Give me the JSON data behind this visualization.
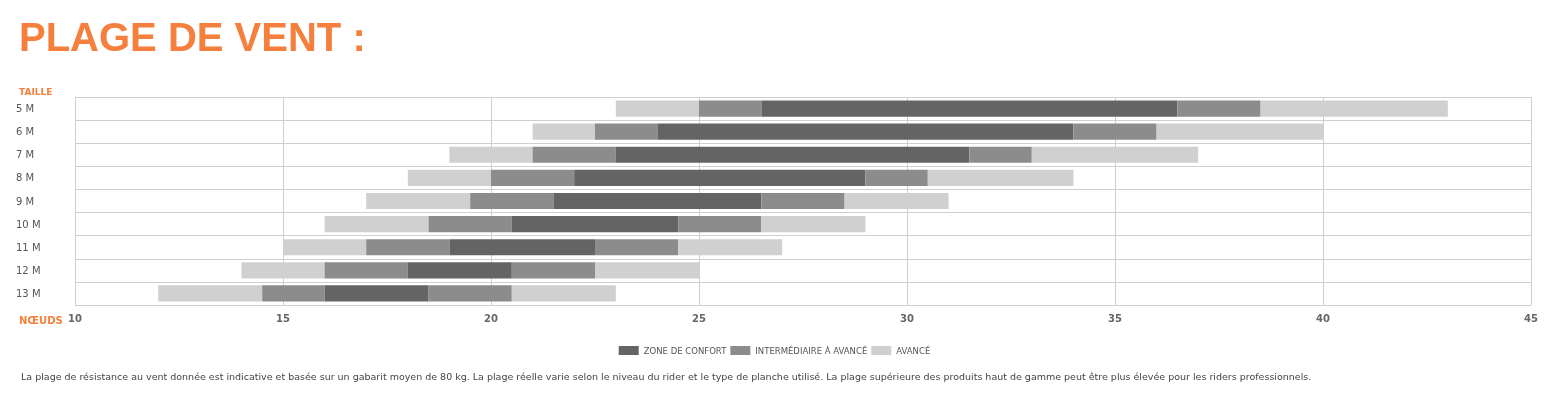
{
  "chart_data": {
    "type": "bar",
    "orientation": "horizontal",
    "title": "PLAGE DE VENT :",
    "ylabel": "TAILLE",
    "xlabel": "NŒUDS",
    "categories": [
      "5 M",
      "6 M",
      "7 M",
      "8 M",
      "9 M",
      "10 M",
      "11 M",
      "12 M",
      "13 M"
    ],
    "series": [
      {
        "name": "AVANCÉ",
        "color": "#d0d0d0",
        "base": [
          23,
          21,
          19,
          18,
          17,
          16,
          15,
          14,
          12
        ],
        "values": [
          2,
          1.5,
          2,
          2,
          2.5,
          2.5,
          2,
          2,
          2.5
        ]
      },
      {
        "name": "INTERMÉDIAIRE À AVANCÉ",
        "color": "#8c8c8c",
        "base": [
          25,
          22.5,
          21,
          20,
          19.5,
          18.5,
          17,
          16,
          14.5
        ],
        "values": [
          1.5,
          1.5,
          2,
          2,
          2,
          2,
          2,
          2,
          1.5
        ]
      },
      {
        "name": "ZONE DE CONFORT",
        "color": "#646464",
        "base": [
          26.5,
          24,
          23,
          22,
          21.5,
          20.5,
          19,
          18,
          16
        ],
        "values": [
          10,
          10,
          8.5,
          7,
          5,
          4,
          3.5,
          2.5,
          2.5
        ]
      },
      {
        "color": "#8c8c8c",
        "base": [
          36.5,
          34,
          31.5,
          29,
          26.5,
          24.5,
          22.5,
          20.5,
          18.5
        ],
        "values": [
          2,
          2,
          1.5,
          1.5,
          2,
          2,
          2,
          2,
          2
        ]
      },
      {
        "color": "#d0d0d0",
        "base": [
          38.5,
          36,
          33,
          30.5,
          28.5,
          26.5,
          24.5,
          22.5,
          20.5
        ],
        "values": [
          4.5,
          4,
          4,
          3.5,
          2.5,
          2.5,
          2.5,
          2.5,
          2.5
        ]
      }
    ],
    "xlim": [
      10,
      45
    ],
    "xticks": [
      10,
      15,
      20,
      25,
      30,
      35,
      40,
      45
    ],
    "grid": true,
    "legend": "bottom",
    "annotations": [
      "La plage de résistance au vent donnée est indicative et basée sur un gabarit moyen de 80 kg. La plage réelle varie selon le niveau du rider et le type de planche utilisé. La plage supérieure des produits haut de gamme peut être plus élevée pour les riders professionnels."
    ]
  }
}
